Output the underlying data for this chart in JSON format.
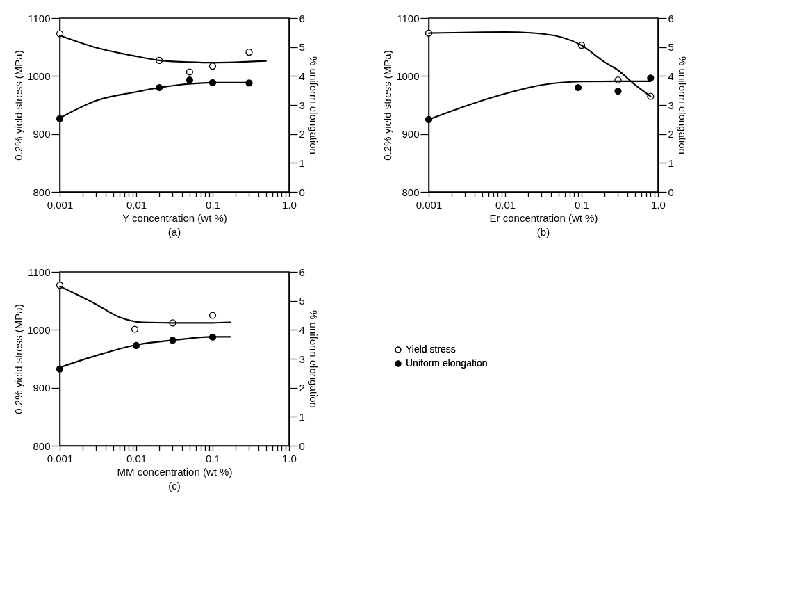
{
  "chart_data": [
    {
      "type": "scatter",
      "title": "(a)",
      "xlabel": "Y concentration (wt %)",
      "ylabel": "0.2% yield stress (MPa)",
      "y2label": "% uniform elongation",
      "log": "x",
      "xlim": [
        0.001,
        1
      ],
      "xticks": [
        0.001,
        {
          "value": 0.002,
          "label": null
        },
        {
          "value": 0.003,
          "label": null
        },
        {
          "value": 0.004,
          "label": null
        },
        {
          "value": 0.005,
          "label": null
        },
        {
          "value": 0.006,
          "label": null
        },
        {
          "value": 0.007,
          "label": null
        },
        {
          "value": 0.008,
          "label": null
        },
        {
          "value": 0.009,
          "label": null
        },
        0.01,
        {
          "value": 0.02,
          "label": null
        },
        {
          "value": 0.03,
          "label": null
        },
        {
          "value": 0.04,
          "label": null
        },
        {
          "value": 0.05,
          "label": null
        },
        {
          "value": 0.06,
          "label": null
        },
        {
          "value": 0.07,
          "label": null
        },
        {
          "value": 0.08,
          "label": null
        },
        {
          "value": 0.09,
          "label": null
        },
        0.1,
        {
          "value": 0.2,
          "label": null
        },
        {
          "value": 0.3,
          "label": null
        },
        {
          "value": 0.4,
          "label": null
        },
        {
          "value": 0.5,
          "label": null
        },
        {
          "value": 0.6,
          "label": null
        },
        {
          "value": 0.7,
          "label": null
        },
        {
          "value": 0.8,
          "label": null
        },
        {
          "value": 0.9,
          "label": null
        },
        {
          "value": 1,
          "label": "1.0"
        }
      ],
      "ylim": [
        800,
        1100
      ],
      "yticks": [
        800,
        900,
        1000,
        1100
      ],
      "y2lim": [
        0,
        6
      ],
      "y2ticks": [
        0,
        1,
        2,
        3,
        4,
        5,
        6
      ],
      "series": [
        {
          "type": "scatter",
          "marker": "circle",
          "color": "#ffffff",
          "x": [
            0.001,
            0.02,
            0.05,
            0.1,
            0.3
          ],
          "values": [
            1073,
            1027,
            1007,
            1017,
            1041
          ]
        },
        {
          "type": "scatter",
          "marker": "circle",
          "axis": "y2",
          "color": "#000000",
          "x": [
            0.001,
            0.02,
            0.05,
            0.1,
            0.3
          ],
          "values": [
            2.53,
            3.6,
            3.86,
            3.77,
            3.76
          ]
        },
        {
          "type": "line",
          "color": "#000000",
          "x": [
            0.001,
            0.003,
            0.01,
            0.02,
            0.05,
            0.1,
            0.5
          ],
          "values": [
            1070,
            1049,
            1034,
            1027,
            1024,
            1023,
            1026
          ]
        },
        {
          "type": "line",
          "axis": "y2",
          "color": "#000000",
          "x": [
            0.001,
            0.003,
            0.01,
            0.02,
            0.05,
            0.1,
            0.3
          ],
          "values": [
            2.55,
            3.15,
            3.45,
            3.6,
            3.73,
            3.77,
            3.77
          ]
        }
      ]
    },
    {
      "type": "scatter",
      "title": "(b)",
      "xlabel": "Er concentration (wt %)",
      "ylabel": "0.2% yield stress (MPa)",
      "y2label": "% uniform elongation",
      "log": "x",
      "xlim": [
        0.001,
        1
      ],
      "xticks": [
        0.001,
        {
          "value": 0.002,
          "label": null
        },
        {
          "value": 0.003,
          "label": null
        },
        {
          "value": 0.004,
          "label": null
        },
        {
          "value": 0.005,
          "label": null
        },
        {
          "value": 0.006,
          "label": null
        },
        {
          "value": 0.007,
          "label": null
        },
        {
          "value": 0.008,
          "label": null
        },
        {
          "value": 0.009,
          "label": null
        },
        0.01,
        {
          "value": 0.02,
          "label": null
        },
        {
          "value": 0.03,
          "label": null
        },
        {
          "value": 0.04,
          "label": null
        },
        {
          "value": 0.05,
          "label": null
        },
        {
          "value": 0.06,
          "label": null
        },
        {
          "value": 0.07,
          "label": null
        },
        {
          "value": 0.08,
          "label": null
        },
        {
          "value": 0.09,
          "label": null
        },
        0.1,
        {
          "value": 0.2,
          "label": null
        },
        {
          "value": 0.3,
          "label": null
        },
        {
          "value": 0.4,
          "label": null
        },
        {
          "value": 0.5,
          "label": null
        },
        {
          "value": 0.6,
          "label": null
        },
        {
          "value": 0.7,
          "label": null
        },
        {
          "value": 0.8,
          "label": null
        },
        {
          "value": 0.9,
          "label": null
        },
        {
          "value": 1,
          "label": "1.0"
        }
      ],
      "ylim": [
        800,
        1100
      ],
      "yticks": [
        800,
        900,
        1000,
        1100
      ],
      "y2lim": [
        0,
        6
      ],
      "y2ticks": [
        0,
        1,
        2,
        3,
        4,
        5,
        6
      ],
      "series": [
        {
          "type": "scatter",
          "marker": "circle",
          "color": "#ffffff",
          "x": [
            0.001,
            0.1,
            0.3,
            0.8
          ],
          "values": [
            1074,
            1053,
            993,
            965
          ]
        },
        {
          "type": "scatter",
          "marker": "circle",
          "axis": "y2",
          "color": "#000000",
          "x": [
            0.001,
            0.09,
            0.3,
            0.8
          ],
          "values": [
            2.5,
            3.6,
            3.48,
            3.93
          ],
          "errors": [
            null,
            null,
            null,
            [
              3.8,
              4.05
            ]
          ]
        },
        {
          "type": "line",
          "color": "#000000",
          "x": [
            0.001,
            0.01,
            0.03,
            0.1,
            0.2,
            0.3,
            0.5,
            0.8
          ],
          "values": [
            1074,
            1076,
            1073,
            1053,
            1024,
            1010,
            985,
            965
          ]
        },
        {
          "type": "line",
          "axis": "y2",
          "color": "#000000",
          "x": [
            0.001,
            0.003,
            0.01,
            0.03,
            0.1,
            0.3,
            0.8
          ],
          "values": [
            2.5,
            2.96,
            3.39,
            3.69,
            3.81,
            3.82,
            3.82
          ]
        }
      ]
    },
    {
      "type": "scatter",
      "title": "(c)",
      "xlabel": "MM concentration (wt %)",
      "ylabel": "0.2% yield stress (MPa)",
      "y2label": "% uniform elongation",
      "log": "x",
      "legend": "right",
      "xlim": [
        0.001,
        1
      ],
      "xticks": [
        0.001,
        {
          "value": 0.002,
          "label": null
        },
        {
          "value": 0.003,
          "label": null
        },
        {
          "value": 0.004,
          "label": null
        },
        {
          "value": 0.005,
          "label": null
        },
        {
          "value": 0.006,
          "label": null
        },
        {
          "value": 0.007,
          "label": null
        },
        {
          "value": 0.008,
          "label": null
        },
        {
          "value": 0.009,
          "label": null
        },
        0.01,
        {
          "value": 0.02,
          "label": null
        },
        {
          "value": 0.03,
          "label": null
        },
        {
          "value": 0.04,
          "label": null
        },
        {
          "value": 0.05,
          "label": null
        },
        {
          "value": 0.06,
          "label": null
        },
        {
          "value": 0.07,
          "label": null
        },
        {
          "value": 0.08,
          "label": null
        },
        {
          "value": 0.09,
          "label": null
        },
        0.1,
        {
          "value": 0.2,
          "label": null
        },
        {
          "value": 0.3,
          "label": null
        },
        {
          "value": 0.4,
          "label": null
        },
        {
          "value": 0.5,
          "label": null
        },
        {
          "value": 0.6,
          "label": null
        },
        {
          "value": 0.7,
          "label": null
        },
        {
          "value": 0.8,
          "label": null
        },
        {
          "value": 0.9,
          "label": null
        },
        {
          "value": 1,
          "label": "1.0"
        }
      ],
      "ylim": [
        800,
        1100
      ],
      "yticks": [
        800,
        900,
        1000,
        1100
      ],
      "y2lim": [
        0,
        6
      ],
      "y2ticks": [
        0,
        1,
        2,
        3,
        4,
        5,
        6
      ],
      "series": [
        {
          "type": "scatter",
          "marker": "circle",
          "name": "Yield stress",
          "color": "#ffffff",
          "x": [
            0.001,
            0.0096,
            0.03,
            0.1
          ],
          "values": [
            1077,
            1001,
            1012,
            1025
          ]
        },
        {
          "type": "scatter",
          "marker": "circle",
          "name": "Uniform elongation",
          "axis": "y2",
          "color": "#000000",
          "x": [
            0.001,
            0.01,
            0.03,
            0.1
          ],
          "values": [
            2.65,
            3.46,
            3.64,
            3.75
          ]
        },
        {
          "type": "line",
          "color": "#000000",
          "x": [
            0.001,
            0.003,
            0.006,
            0.012,
            0.03,
            0.1,
            0.17
          ],
          "values": [
            1075,
            1044,
            1022,
            1013,
            1012,
            1012,
            1013
          ]
        },
        {
          "type": "line",
          "axis": "y2",
          "color": "#000000",
          "x": [
            0.001,
            0.003,
            0.01,
            0.03,
            0.1,
            0.17
          ],
          "values": [
            2.7,
            3.11,
            3.48,
            3.64,
            3.76,
            3.76
          ]
        }
      ]
    }
  ]
}
